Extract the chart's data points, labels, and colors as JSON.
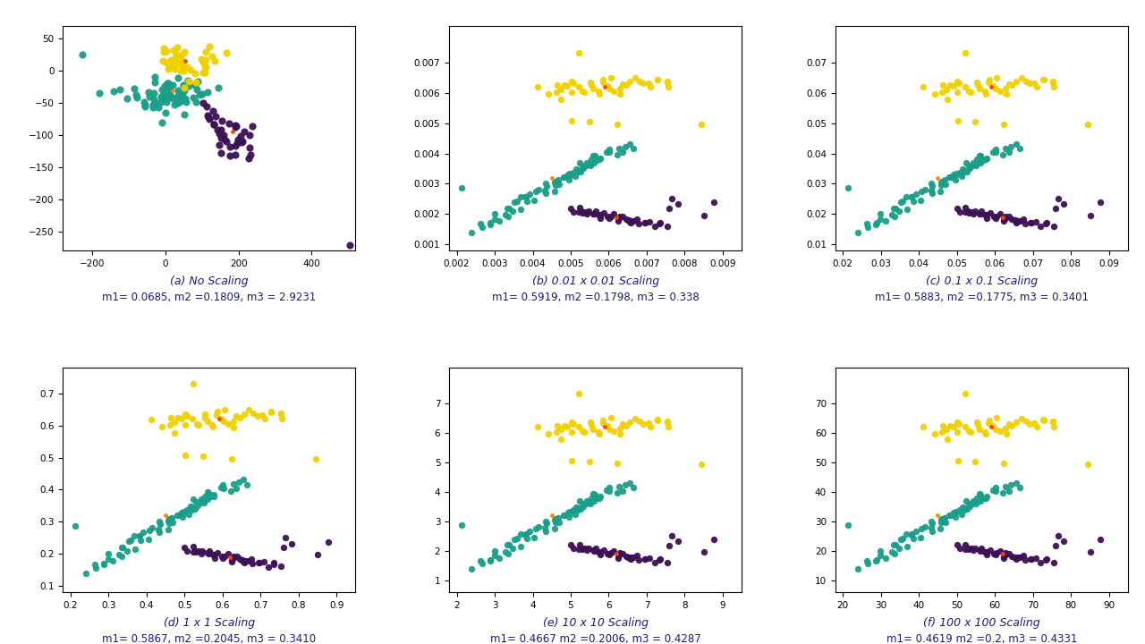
{
  "plots": [
    {
      "title": "(a) No Scaling",
      "metrics": "m1= 0.0685, m2 =0.1809, m3 = 2.9231",
      "xlim": [
        -280,
        520
      ],
      "ylim": [
        -280,
        70
      ],
      "xticks": [
        -200,
        0,
        200,
        400
      ],
      "yticks": [
        50,
        0,
        -50,
        -100,
        -150,
        -200,
        -250
      ],
      "scale": 1.0
    },
    {
      "title": "(b) 0.01 x 0.01 Scaling",
      "metrics": "m1= 0.5919, m2 =0.1798, m3 = 0.338",
      "xlim": [
        0.0018,
        0.0095
      ],
      "ylim": [
        0.0008,
        0.0082
      ],
      "xticks": [
        0.002,
        0.003,
        0.004,
        0.005,
        0.006,
        0.007,
        0.008,
        0.009
      ],
      "yticks": [
        0.001,
        0.002,
        0.003,
        0.004,
        0.005,
        0.006,
        0.007
      ],
      "scale": 0.01
    },
    {
      "title": "(c) 0.1 x 0.1 Scaling",
      "metrics": "m1= 0.5883, m2 =0.1775, m3 = 0.3401",
      "xlim": [
        0.018,
        0.095
      ],
      "ylim": [
        0.008,
        0.082
      ],
      "xticks": [
        0.02,
        0.03,
        0.04,
        0.05,
        0.06,
        0.07,
        0.08,
        0.09
      ],
      "yticks": [
        0.01,
        0.02,
        0.03,
        0.04,
        0.05,
        0.06,
        0.07
      ],
      "scale": 0.1
    },
    {
      "title": "(d) 1 x 1 Scaling",
      "metrics": "m1= 0.5867, m2 =0.2045, m3 = 0.3410",
      "xlim": [
        0.18,
        0.95
      ],
      "ylim": [
        0.08,
        0.78
      ],
      "xticks": [
        0.2,
        0.3,
        0.4,
        0.5,
        0.6,
        0.7,
        0.8,
        0.9
      ],
      "yticks": [
        0.1,
        0.2,
        0.3,
        0.4,
        0.5,
        0.6,
        0.7
      ],
      "scale": 1.0
    },
    {
      "title": "(e) 10 x 10 Scaling",
      "metrics": "m1= 0.4667 m2 =0.2006, m3 = 0.4287",
      "xlim": [
        1.8,
        9.5
      ],
      "ylim": [
        0.6,
        8.2
      ],
      "xticks": [
        2,
        3,
        4,
        5,
        6,
        7,
        8,
        9
      ],
      "yticks": [
        1,
        2,
        3,
        4,
        5,
        6,
        7
      ],
      "scale": 10.0
    },
    {
      "title": "(f) 100 x 100 Scaling",
      "metrics": "m1= 0.4619 m2 =0.2, m3 = 0.4331",
      "xlim": [
        18,
        95
      ],
      "ylim": [
        6,
        82
      ],
      "xticks": [
        20,
        30,
        40,
        50,
        60,
        70,
        80,
        90
      ],
      "yticks": [
        10,
        20,
        30,
        40,
        50,
        60,
        70
      ],
      "scale": 100.0
    }
  ],
  "colors": {
    "teal": "#1a9e89",
    "yellow": "#f0d000",
    "purple": "#3d1155",
    "centroid_teal": "#ff8800",
    "centroid_yellow": "#ff4400",
    "centroid_purple": "#ff4400"
  },
  "teal_base": {
    "x": [
      0.21,
      0.24,
      0.26,
      0.28,
      0.3,
      0.3,
      0.32,
      0.33,
      0.34,
      0.35,
      0.36,
      0.37,
      0.38,
      0.39,
      0.4,
      0.41,
      0.42,
      0.43,
      0.44,
      0.44,
      0.45,
      0.46,
      0.46,
      0.47,
      0.47,
      0.48,
      0.49,
      0.49,
      0.5,
      0.5,
      0.51,
      0.51,
      0.52,
      0.52,
      0.53,
      0.53,
      0.54,
      0.54,
      0.55,
      0.55,
      0.55,
      0.56,
      0.56,
      0.57,
      0.57,
      0.58,
      0.58,
      0.59,
      0.6,
      0.61,
      0.62,
      0.63,
      0.64,
      0.64,
      0.65,
      0.66,
      0.27,
      0.29,
      0.31,
      0.33,
      0.35,
      0.37,
      0.39,
      0.41,
      0.43,
      0.45,
      0.47,
      0.49,
      0.51,
      0.53,
      0.55
    ],
    "y": [
      0.28,
      0.14,
      0.16,
      0.18,
      0.18,
      0.2,
      0.2,
      0.22,
      0.23,
      0.24,
      0.24,
      0.25,
      0.26,
      0.26,
      0.27,
      0.27,
      0.28,
      0.28,
      0.29,
      0.3,
      0.3,
      0.3,
      0.31,
      0.31,
      0.32,
      0.32,
      0.32,
      0.33,
      0.33,
      0.34,
      0.34,
      0.34,
      0.35,
      0.35,
      0.35,
      0.36,
      0.36,
      0.36,
      0.37,
      0.37,
      0.38,
      0.37,
      0.38,
      0.38,
      0.39,
      0.38,
      0.39,
      0.4,
      0.4,
      0.41,
      0.4,
      0.41,
      0.41,
      0.42,
      0.42,
      0.42,
      0.16,
      0.17,
      0.18,
      0.2,
      0.21,
      0.22,
      0.24,
      0.25,
      0.26,
      0.28,
      0.3,
      0.31,
      0.33,
      0.34,
      0.36
    ]
  },
  "yellow_base": {
    "x": [
      0.42,
      0.44,
      0.46,
      0.47,
      0.47,
      0.48,
      0.48,
      0.49,
      0.5,
      0.5,
      0.51,
      0.52,
      0.53,
      0.54,
      0.55,
      0.55,
      0.56,
      0.57,
      0.58,
      0.58,
      0.59,
      0.59,
      0.6,
      0.6,
      0.61,
      0.62,
      0.63,
      0.64,
      0.65,
      0.66,
      0.67,
      0.68,
      0.69,
      0.7,
      0.71,
      0.72,
      0.73,
      0.74,
      0.75,
      0.76,
      0.85,
      0.5,
      0.55,
      0.62,
      0.52
    ],
    "y": [
      0.62,
      0.6,
      0.61,
      0.58,
      0.62,
      0.61,
      0.63,
      0.62,
      0.6,
      0.64,
      0.63,
      0.62,
      0.61,
      0.6,
      0.61,
      0.63,
      0.62,
      0.61,
      0.6,
      0.63,
      0.62,
      0.64,
      0.63,
      0.61,
      0.6,
      0.59,
      0.61,
      0.63,
      0.62,
      0.64,
      0.65,
      0.64,
      0.63,
      0.62,
      0.63,
      0.64,
      0.65,
      0.64,
      0.63,
      0.62,
      0.5,
      0.51,
      0.5,
      0.5,
      0.73
    ]
  },
  "purple_base": {
    "x": [
      0.5,
      0.51,
      0.52,
      0.52,
      0.53,
      0.53,
      0.54,
      0.54,
      0.55,
      0.56,
      0.56,
      0.57,
      0.57,
      0.58,
      0.58,
      0.59,
      0.59,
      0.6,
      0.61,
      0.61,
      0.62,
      0.62,
      0.63,
      0.63,
      0.64,
      0.64,
      0.65,
      0.65,
      0.66,
      0.66,
      0.67,
      0.67,
      0.68,
      0.68,
      0.69,
      0.7,
      0.71,
      0.72,
      0.73,
      0.74,
      0.75,
      0.76,
      0.77,
      0.78,
      0.85,
      0.88
    ],
    "y": [
      0.22,
      0.21,
      0.21,
      0.22,
      0.2,
      0.21,
      0.2,
      0.21,
      0.21,
      0.2,
      0.2,
      0.2,
      0.21,
      0.19,
      0.2,
      0.2,
      0.19,
      0.19,
      0.19,
      0.2,
      0.19,
      0.18,
      0.18,
      0.19,
      0.18,
      0.19,
      0.18,
      0.18,
      0.17,
      0.18,
      0.17,
      0.18,
      0.17,
      0.18,
      0.17,
      0.17,
      0.17,
      0.16,
      0.17,
      0.17,
      0.16,
      0.22,
      0.25,
      0.23,
      0.2,
      0.23
    ]
  },
  "teal_centroid_base": [
    0.45,
    0.32
  ],
  "yellow_centroid_base": [
    0.59,
    0.62
  ],
  "purple_centroid_base": [
    0.62,
    0.19
  ]
}
